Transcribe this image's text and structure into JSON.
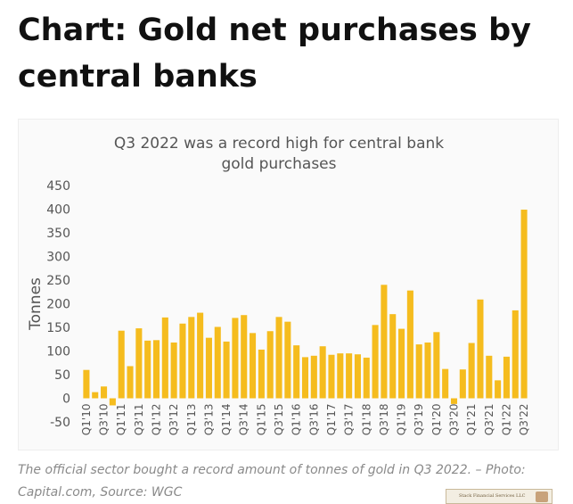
{
  "headline": "Chart: Gold net purchases by central banks",
  "caption": "The official sector bought a record amount of tonnes of gold in Q3 2022. – Photo: Capital.com, Source: WGC",
  "watermark": "Stack Financial Services LLC",
  "colors": {
    "bar": "#F5BC1E",
    "text": "#555555",
    "headline": "#111111",
    "caption": "#8a8a8a"
  },
  "chart_data": {
    "type": "bar",
    "title": "Q3 2022 was a record high for central bank gold purchases",
    "title_lines": [
      "Q3 2022 was a record high for central bank",
      "gold purchases"
    ],
    "ylabel": "Tonnes",
    "xlabel": "",
    "ylim": [
      -50,
      450
    ],
    "yticks": [
      450,
      400,
      350,
      300,
      250,
      200,
      150,
      100,
      50,
      0,
      -50
    ],
    "grid": false,
    "categories": [
      "Q1'10",
      "Q2'10",
      "Q3'10",
      "Q4'10",
      "Q1'11",
      "Q2'11",
      "Q3'11",
      "Q4'11",
      "Q1'12",
      "Q2'12",
      "Q3'12",
      "Q4'12",
      "Q1'13",
      "Q2'13",
      "Q3'13",
      "Q4'13",
      "Q1'14",
      "Q2'14",
      "Q3'14",
      "Q4'14",
      "Q1'15",
      "Q2'15",
      "Q3'15",
      "Q4'15",
      "Q1'16",
      "Q2'16",
      "Q3'16",
      "Q4'16",
      "Q1'17",
      "Q2'17",
      "Q3'17",
      "Q4'17",
      "Q1'18",
      "Q2'18",
      "Q3'18",
      "Q4'18",
      "Q1'19",
      "Q2'19",
      "Q3'19",
      "Q4'19",
      "Q1'20",
      "Q2'20",
      "Q3'20",
      "Q4'20",
      "Q1'21",
      "Q2'21",
      "Q3'21",
      "Q4'21",
      "Q1'22",
      "Q2'22",
      "Q3'22"
    ],
    "visible_tick_labels": [
      "Q1'10",
      "Q3'10",
      "Q1'11",
      "Q3'11",
      "Q1'12",
      "Q3'12",
      "Q1'13",
      "Q3'13",
      "Q1'14",
      "Q3'14",
      "Q1'15",
      "Q3'15",
      "Q1'16",
      "Q3'16",
      "Q1'17",
      "Q3'17",
      "Q1'18",
      "Q3'18",
      "Q1'19",
      "Q3'19",
      "Q1'20",
      "Q3'20",
      "Q1'21",
      "Q3'21",
      "Q1'22",
      "Q3'22"
    ],
    "values": [
      60,
      13,
      25,
      -15,
      143,
      68,
      148,
      122,
      123,
      171,
      118,
      158,
      172,
      181,
      128,
      151,
      120,
      170,
      176,
      138,
      103,
      142,
      172,
      162,
      112,
      87,
      90,
      110,
      92,
      95,
      95,
      93,
      86,
      155,
      240,
      178,
      147,
      228,
      114,
      118,
      140,
      62,
      -12,
      61,
      117,
      209,
      90,
      38,
      88,
      186,
      399
    ]
  }
}
